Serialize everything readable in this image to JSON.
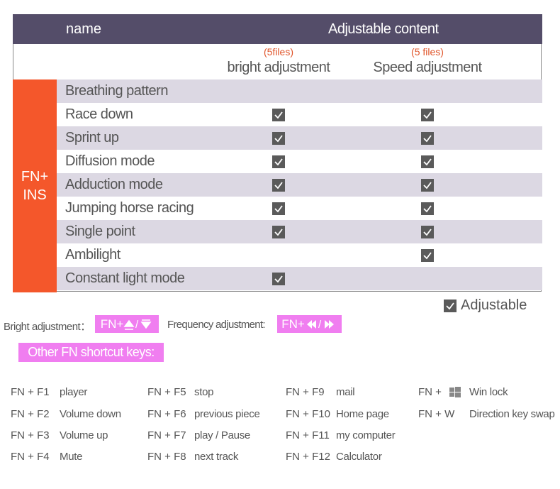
{
  "table": {
    "header": {
      "name": "name",
      "content": "Adjustable content"
    },
    "columns": [
      {
        "note": "(5files)",
        "label": "bright adjustment"
      },
      {
        "note": "(5 files)",
        "label": "Speed adjustment"
      }
    ],
    "group": [
      "FN+",
      "INS"
    ],
    "rows": [
      {
        "name": "Breathing pattern",
        "checks": [
          false,
          false
        ]
      },
      {
        "name": "Race down",
        "checks": [
          true,
          true
        ]
      },
      {
        "name": "Sprint up",
        "checks": [
          true,
          true
        ]
      },
      {
        "name": "Diffusion mode",
        "checks": [
          true,
          true
        ]
      },
      {
        "name": "Adduction mode",
        "checks": [
          true,
          true
        ]
      },
      {
        "name": "Jumping horse racing",
        "checks": [
          true,
          true
        ]
      },
      {
        "name": "Single point",
        "checks": [
          true,
          true
        ]
      },
      {
        "name": "Ambilight",
        "checks": [
          false,
          true
        ]
      },
      {
        "name": "Constant light mode",
        "checks": [
          true,
          false
        ]
      }
    ]
  },
  "legend": "Adjustable",
  "adjust": {
    "bright_label": "Bright adjustment：",
    "bright_key": "FN+",
    "freq_label": "Frequency adjustment:",
    "freq_key": "FN+"
  },
  "other_title": "Other FN shortcut keys:",
  "shortcuts": [
    [
      {
        "key": "FN + F1",
        "action": "player"
      },
      {
        "key": "FN + F2",
        "action": "Volume down"
      },
      {
        "key": "FN + F3",
        "action": "Volume up"
      },
      {
        "key": "FN + F4",
        "action": "Mute"
      }
    ],
    [
      {
        "key": "FN + F5",
        "action": "stop"
      },
      {
        "key": "FN + F6",
        "action": "previous piece"
      },
      {
        "key": "FN + F7",
        "action": "play / Pause"
      },
      {
        "key": "FN + F8",
        "action": "next track"
      }
    ],
    [
      {
        "key": "FN + F9",
        "action": "mail"
      },
      {
        "key": "FN + F10",
        "action": "Home page"
      },
      {
        "key": "FN + F11",
        "action": "my computer"
      },
      {
        "key": "FN + F12",
        "action": "Calculator"
      }
    ],
    [
      {
        "key": "FN +",
        "action": "Win lock"
      },
      {
        "key": "FN + W",
        "action": "Direction key swap"
      }
    ]
  ]
}
